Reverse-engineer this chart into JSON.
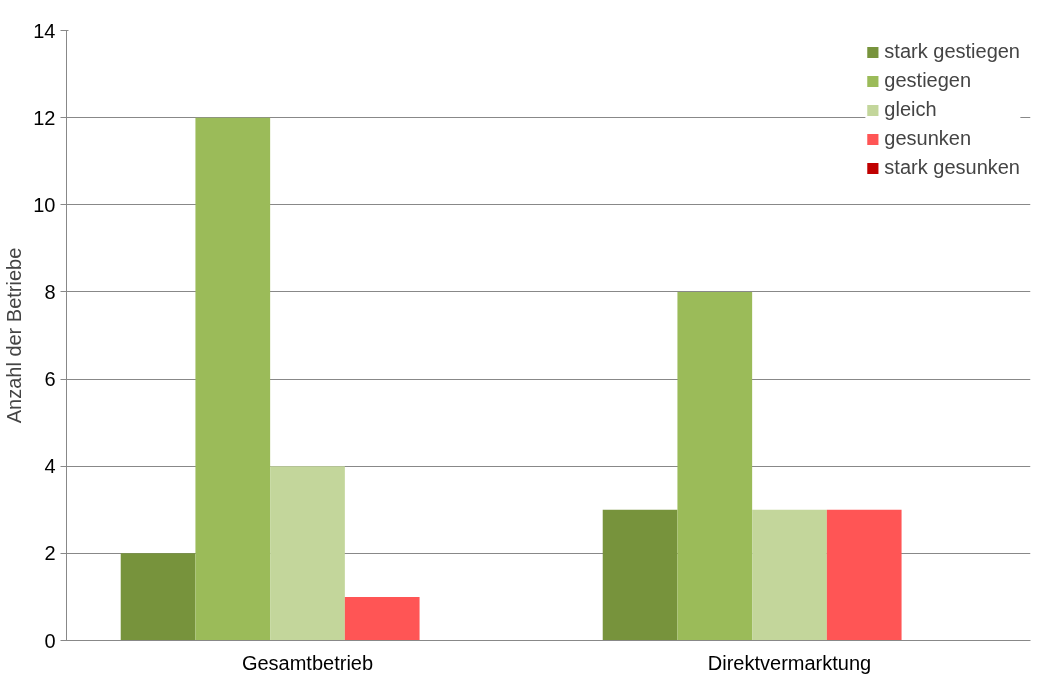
{
  "chart_data": {
    "type": "bar",
    "ylabel": "Anzahl der Betriebe",
    "categories": [
      "Gesamtbetrieb",
      "Direktvermarktung"
    ],
    "series": [
      {
        "name": "stark gestiegen",
        "color": "#77933c",
        "values": [
          2,
          3
        ]
      },
      {
        "name": "gestiegen",
        "color": "#9bbb59",
        "values": [
          12,
          8
        ]
      },
      {
        "name": "gleich",
        "color": "#c3d69b",
        "values": [
          4,
          3
        ]
      },
      {
        "name": "gesunken",
        "color": "#ff5555",
        "values": [
          1,
          3
        ]
      },
      {
        "name": "stark gesunken",
        "color": "#c00000",
        "values": [
          0,
          0
        ]
      }
    ],
    "ylim": [
      0,
      14
    ],
    "yticks": [
      0,
      2,
      4,
      6,
      8,
      10,
      12,
      14
    ],
    "grid": "y",
    "legend": "top right"
  }
}
